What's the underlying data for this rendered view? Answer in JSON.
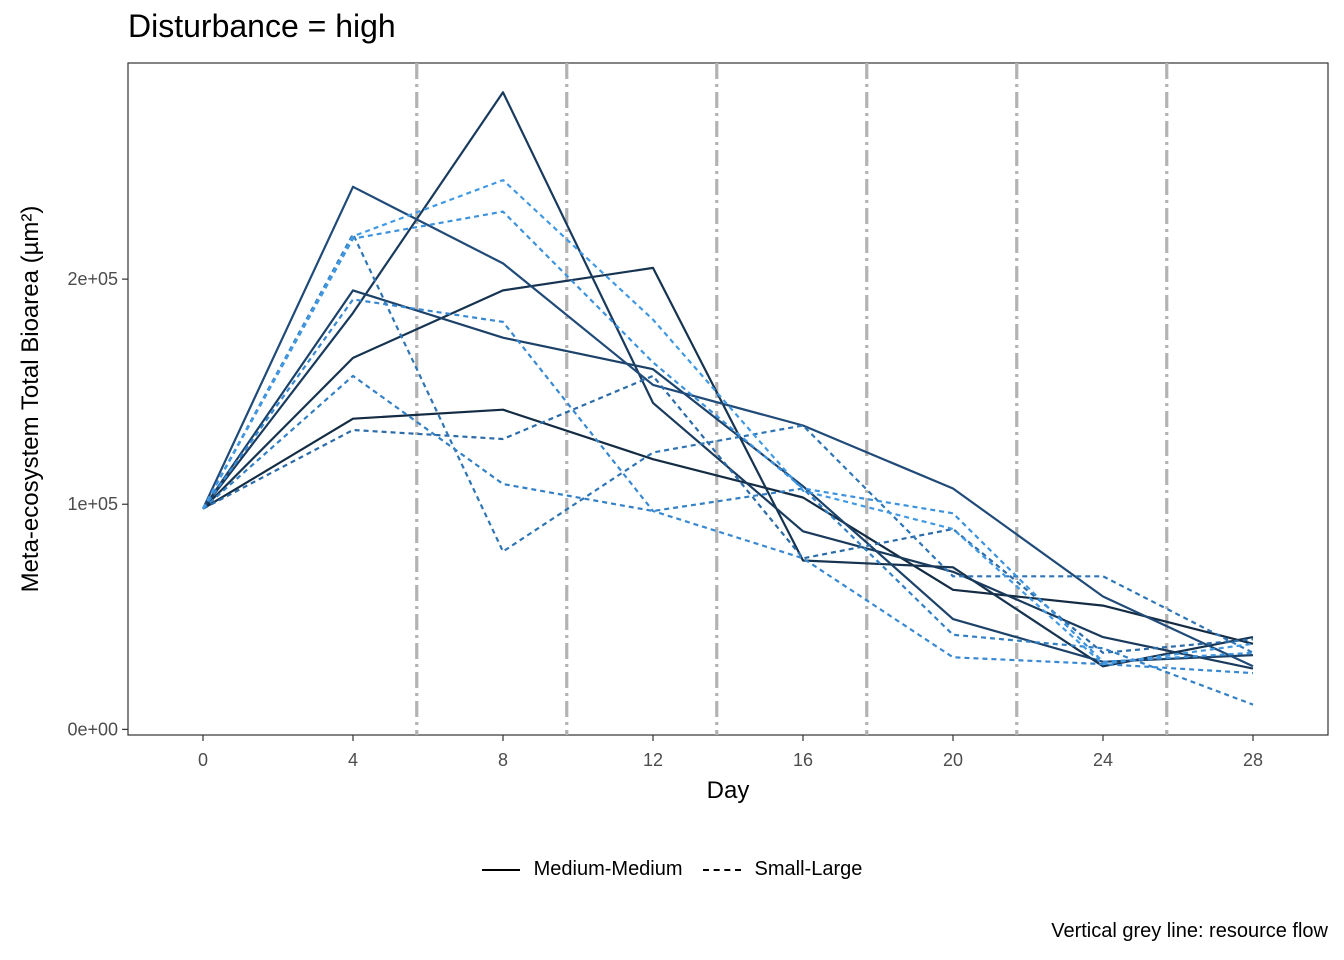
{
  "chart_data": {
    "type": "line",
    "title": "Disturbance = high",
    "xlabel": "Day",
    "ylabel": "Meta-ecosystem Total Bioarea (µm²)",
    "xlim": [
      -2,
      30
    ],
    "ylim": [
      -2500,
      296000
    ],
    "x_ticks": [
      0,
      4,
      8,
      12,
      16,
      20,
      24,
      28
    ],
    "x_tick_labels": [
      "0",
      "4",
      "8",
      "12",
      "16",
      "20",
      "24",
      "28"
    ],
    "y_ticks": [
      0,
      100000,
      200000
    ],
    "y_tick_labels": [
      "0e+00",
      "1e+05",
      "2e+05"
    ],
    "resource_flow_days": [
      5.7,
      9.7,
      13.7,
      17.7,
      21.7,
      25.7
    ],
    "grid": false,
    "legend_position": "bottom",
    "legend": [
      {
        "label": "Medium-Medium",
        "linetype": "solid"
      },
      {
        "label": "Small-Large",
        "linetype": "dashed"
      }
    ],
    "caption": "Vertical grey line: resource flow",
    "x": [
      0,
      4,
      8,
      12,
      16,
      20,
      24,
      28
    ],
    "series": [
      {
        "group": "Medium-Medium",
        "color": "#132b43",
        "values": [
          98000,
          138000,
          142000,
          120000,
          103000,
          62000,
          55000,
          38000
        ]
      },
      {
        "group": "Medium-Medium",
        "color": "#163350",
        "values": [
          98000,
          165000,
          195000,
          205000,
          75000,
          72000,
          28000,
          41000
        ]
      },
      {
        "group": "Medium-Medium",
        "color": "#193a5c",
        "values": [
          98000,
          185000,
          283000,
          145000,
          88000,
          70000,
          41000,
          27000
        ]
      },
      {
        "group": "Medium-Medium",
        "color": "#1c4269",
        "values": [
          98000,
          195000,
          174000,
          160000,
          108000,
          49000,
          30000,
          33000
        ]
      },
      {
        "group": "Medium-Medium",
        "color": "#204a77",
        "values": [
          98000,
          241000,
          207000,
          153000,
          135000,
          107000,
          59000,
          28000
        ]
      },
      {
        "group": "Small-Large",
        "color": "#2b6ba8",
        "values": [
          98000,
          133000,
          129000,
          157000,
          76000,
          89000,
          34000,
          40000
        ]
      },
      {
        "group": "Small-Large",
        "color": "#2f75b5",
        "values": [
          98000,
          220000,
          79000,
          123000,
          135000,
          68000,
          68000,
          34000
        ]
      },
      {
        "group": "Small-Large",
        "color": "#3380c5",
        "values": [
          98000,
          157000,
          109000,
          97000,
          107000,
          42000,
          36000,
          11000
        ]
      },
      {
        "group": "Small-Large",
        "color": "#3889d2",
        "values": [
          98000,
          191000,
          181000,
          97000,
          76000,
          32000,
          29000,
          25000
        ]
      },
      {
        "group": "Small-Large",
        "color": "#3c92dc",
        "values": [
          98000,
          218000,
          230000,
          163000,
          107000,
          96000,
          30000,
          34000
        ]
      },
      {
        "group": "Small-Large",
        "color": "#4299e3",
        "values": [
          98000,
          219000,
          244000,
          182000,
          106000,
          89000,
          29000,
          38000
        ]
      }
    ]
  }
}
